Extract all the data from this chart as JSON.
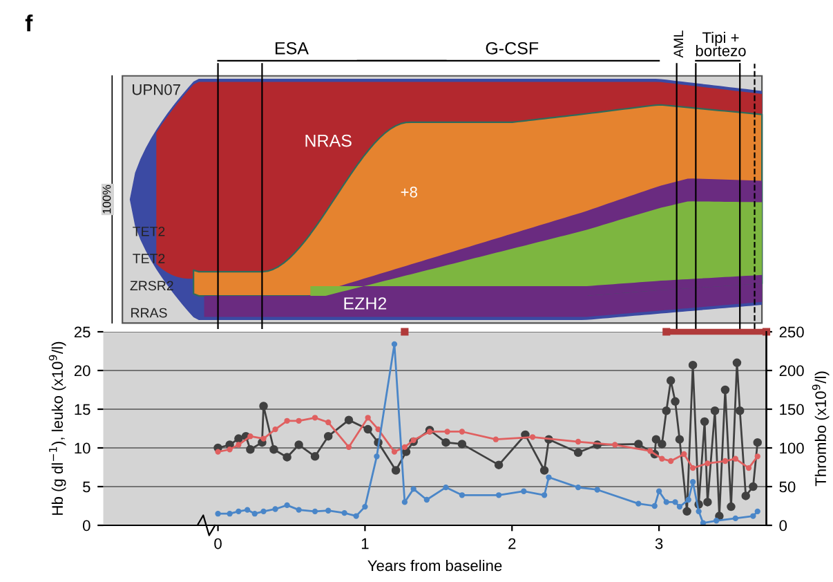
{
  "chart_data": [
    {
      "type": "other",
      "title": "f",
      "annotations": [
        "ESA",
        "G-CSF",
        "AML",
        "Tipi +\nbortezo",
        "UPN07",
        "100%",
        "NRAS",
        "+8",
        "TET2",
        "TET2",
        "ZRSR2",
        "RRAS",
        "EZH2"
      ]
    },
    {
      "type": "line",
      "xlabel": "Years from baseline",
      "ylabel": "Hb (g dl$^{−1}$), leuko (x10$^{9}$/l)",
      "y2label": "Thrombo (x10$^{9}$/l)",
      "xlim": [
        -0.78,
        3.73
      ],
      "xticks": [
        0,
        1,
        2,
        3
      ],
      "ylim": [
        0,
        25
      ],
      "yticks": [
        0,
        5,
        10,
        15,
        20,
        25
      ],
      "y2lim": [
        0,
        250
      ],
      "y2ticks": [
        0,
        50,
        100,
        150,
        200,
        250
      ],
      "grid": "y",
      "marker": "circle",
      "line_style": "solid",
      "legend": false,
      "series": [
        {
          "color": "#b03a3a",
          "marker": "square",
          "x": [
            1.27,
            2.0,
            3.05,
            3.73
          ],
          "values": [
            25,
            null,
            25,
            25
          ]
        },
        {
          "color": "#e06060",
          "x": [
            0,
            0.08,
            0.14,
            0.22,
            0.31,
            0.39,
            0.47,
            0.55,
            0.66,
            0.75,
            0.89,
            1.02,
            1.09,
            1.2,
            1.27,
            1.33,
            1.44,
            1.56,
            1.66,
            1.89,
            2.14,
            2.45,
            2.7,
            2.94,
            3.02,
            3.08,
            3.17,
            3.23,
            3.33,
            3.45,
            3.52,
            3.61,
            3.67
          ],
          "values": [
            9.5,
            9.8,
            10.4,
            11.5,
            11.2,
            12.4,
            13.5,
            13.5,
            13.9,
            13.3,
            10.1,
            13.9,
            12.4,
            9.5,
            10.1,
            11.0,
            12.1,
            12.1,
            12.1,
            11.1,
            11.4,
            10.8,
            10.4,
            9.6,
            8.6,
            8.3,
            9.2,
            7.4,
            8.0,
            8.3,
            8.6,
            7.4,
            8.9
          ]
        },
        {
          "color": "#4a86c8",
          "x": [
            0,
            0.08,
            0.14,
            0.2,
            0.25,
            0.31,
            0.39,
            0.47,
            0.55,
            0.66,
            0.75,
            0.86,
            0.94,
            1.0,
            1.08,
            1.2,
            1.27,
            1.33,
            1.42,
            1.55,
            1.66,
            1.91,
            2.08,
            2.22,
            2.25,
            2.45,
            2.58,
            2.86,
            2.97,
            3.0,
            3.05,
            3.11,
            3.14,
            3.2,
            3.23,
            3.27,
            3.3,
            3.39,
            3.52,
            3.64,
            3.67
          ],
          "values": [
            1.5,
            1.5,
            1.8,
            2.0,
            1.5,
            1.8,
            2.1,
            2.6,
            2.0,
            1.8,
            1.9,
            1.6,
            1.2,
            2.4,
            8.9,
            23.4,
            3.0,
            4.7,
            3.3,
            4.9,
            3.9,
            3.9,
            4.4,
            3.9,
            6.2,
            4.9,
            4.6,
            2.8,
            2.5,
            4.4,
            3.0,
            3.0,
            2.4,
            3.3,
            5.6,
            1.8,
            0.3,
            0.6,
            0.9,
            1.2,
            1.8
          ]
        },
        {
          "color": "#404040",
          "axis": "y2",
          "x": [
            0,
            0.08,
            0.14,
            0.19,
            0.22,
            0.3,
            0.31,
            0.38,
            0.47,
            0.55,
            0.66,
            0.75,
            0.89,
            1.02,
            1.09,
            1.21,
            1.28,
            1.33,
            1.44,
            1.55,
            1.66,
            1.91,
            2.09,
            2.22,
            2.25,
            2.45,
            2.58,
            2.86,
            2.97,
            2.98,
            3.02,
            3.05,
            3.08,
            3.11,
            3.14,
            3.19,
            3.23,
            3.27,
            3.31,
            3.33,
            3.38,
            3.41,
            3.45,
            3.49,
            3.53,
            3.55,
            3.59,
            3.64,
            3.67
          ],
          "values": [
            100,
            104,
            112,
            115,
            98,
            107,
            154,
            98,
            88,
            104,
            89,
            115,
            136,
            124,
            107,
            71,
            95,
            108,
            123,
            107,
            105,
            78,
            117,
            71,
            111,
            94,
            104,
            105,
            92,
            111,
            105,
            148,
            187,
            160,
            111,
            18,
            207,
            27,
            134,
            30,
            148,
            12,
            175,
            24,
            210,
            148,
            38,
            50,
            107
          ]
        }
      ]
    }
  ]
}
